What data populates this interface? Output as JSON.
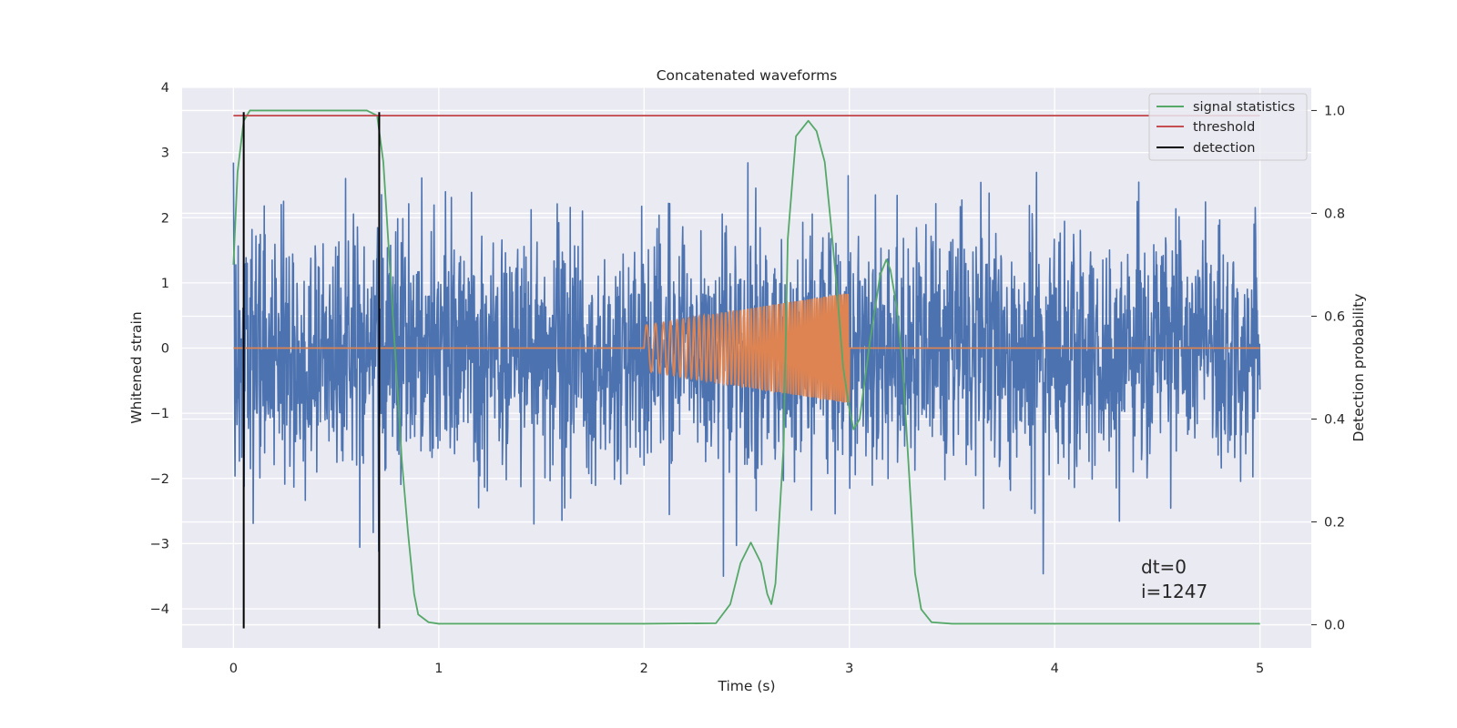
{
  "chart_data": {
    "type": "line",
    "title": "Concatenated waveforms",
    "xlabel": "Time (s)",
    "ylabel_left": "Whitened strain",
    "ylabel_right": "Detection probability",
    "xlim": [
      -0.25,
      5.25
    ],
    "ylim_left": [
      -4.6,
      4.0
    ],
    "ylim_right": [
      -0.045,
      1.045
    ],
    "x_ticks": [
      0,
      1,
      2,
      3,
      4,
      5
    ],
    "y_left_ticks": [
      -4,
      -3,
      -2,
      -1,
      0,
      1,
      2,
      3,
      4
    ],
    "y_right_ticks": [
      0.0,
      0.2,
      0.4,
      0.6,
      0.8,
      1.0
    ],
    "grid": true,
    "legend_position": "upper right",
    "series": [
      {
        "name": "",
        "axis": "left",
        "color": "#4c72b0",
        "kind": "noise",
        "x_range": [
          0,
          5
        ],
        "approx_std": 0.95,
        "approx_min": -4.3,
        "approx_max": 3.6
      },
      {
        "name": "",
        "axis": "left",
        "color": "#dd8452",
        "kind": "chirp",
        "x": [
          0,
          2.0,
          2.0,
          2.5,
          3.0,
          3.0,
          5.0
        ],
        "y": [
          0,
          0,
          0.35,
          0.55,
          0.85,
          0,
          0
        ]
      },
      {
        "name": "signal statistics",
        "axis": "right",
        "color": "#55a868",
        "x": [
          0.0,
          0.02,
          0.05,
          0.08,
          0.12,
          0.2,
          0.65,
          0.7,
          0.73,
          0.78,
          0.82,
          0.85,
          0.88,
          0.9,
          0.95,
          1.0,
          2.0,
          2.35,
          2.42,
          2.47,
          2.52,
          2.57,
          2.6,
          2.62,
          2.64,
          2.68,
          2.7,
          2.74,
          2.8,
          2.84,
          2.88,
          2.91,
          2.94,
          2.97,
          3.0,
          3.02,
          3.05,
          3.1,
          3.15,
          3.18,
          3.2,
          3.23,
          3.26,
          3.29,
          3.32,
          3.35,
          3.4,
          3.5,
          5.0
        ],
        "y": [
          0.7,
          0.88,
          0.98,
          1.0,
          1.0,
          1.0,
          1.0,
          0.99,
          0.9,
          0.58,
          0.32,
          0.18,
          0.06,
          0.02,
          0.005,
          0.002,
          0.002,
          0.003,
          0.04,
          0.12,
          0.16,
          0.12,
          0.06,
          0.04,
          0.08,
          0.35,
          0.75,
          0.95,
          0.98,
          0.96,
          0.9,
          0.78,
          0.65,
          0.5,
          0.42,
          0.38,
          0.4,
          0.55,
          0.68,
          0.71,
          0.69,
          0.62,
          0.5,
          0.3,
          0.1,
          0.03,
          0.005,
          0.002,
          0.002
        ]
      },
      {
        "name": "threshold",
        "axis": "right",
        "color": "#c44e52",
        "x": [
          0,
          5
        ],
        "y": [
          0.99,
          0.99
        ]
      },
      {
        "name": "detection",
        "axis": "left",
        "color": "#000000",
        "segments": [
          {
            "x": 0.05,
            "y0": -4.3,
            "y1": 3.62
          },
          {
            "x": 0.71,
            "y0": -4.3,
            "y1": 3.62
          }
        ]
      }
    ],
    "annotations": [
      "dt=0",
      "i=1247"
    ]
  }
}
